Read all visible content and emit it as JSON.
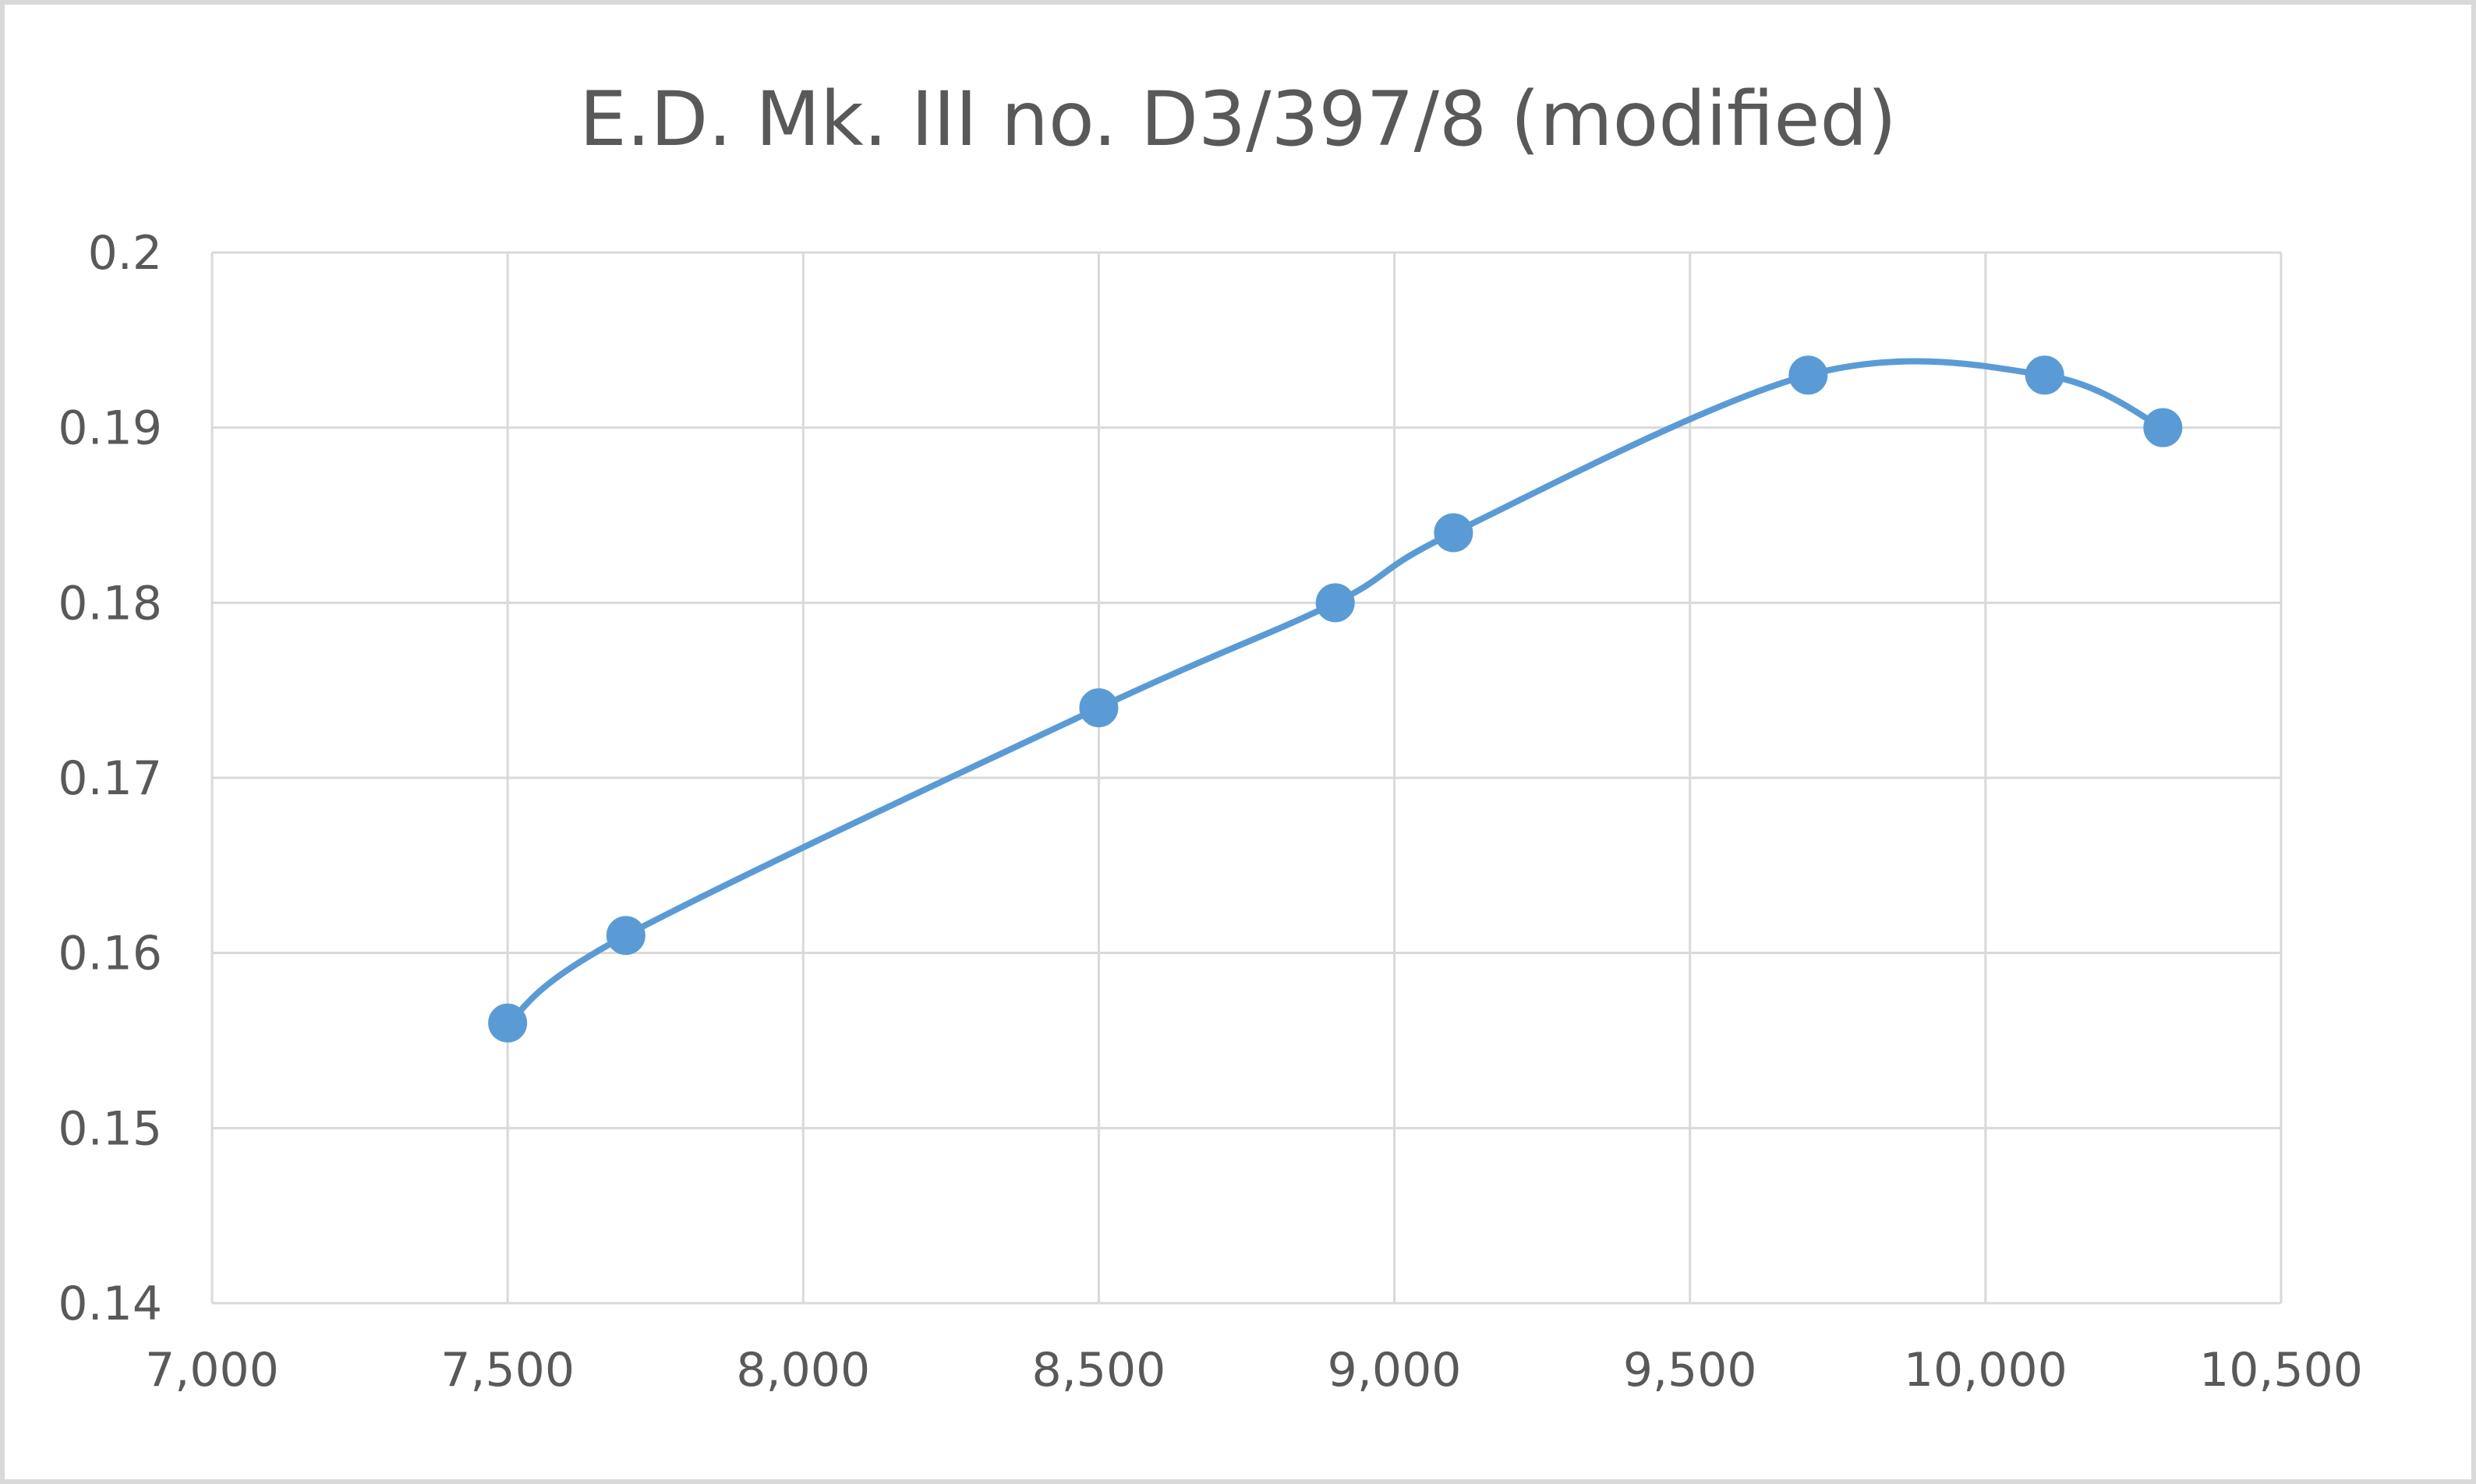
{
  "chart_data": {
    "type": "scatter",
    "title": "E.D. Mk. III no. D3/397/8 (modified)",
    "xlabel": "",
    "ylabel": "",
    "xlim": [
      7000,
      10500
    ],
    "ylim": [
      0.14,
      0.2
    ],
    "x_ticks": [
      7000,
      7500,
      8000,
      8500,
      9000,
      9500,
      10000,
      10500
    ],
    "x_tick_labels": [
      "7,000",
      "7,500",
      "8,000",
      "8,500",
      "9,000",
      "9,500",
      "10,000",
      "10,500"
    ],
    "y_ticks": [
      0.14,
      0.15,
      0.16,
      0.17,
      0.18,
      0.19,
      0.2
    ],
    "y_tick_labels": [
      "0.14",
      "0.15",
      "0.16",
      "0.17",
      "0.18",
      "0.19",
      "0.2"
    ],
    "grid": true,
    "legend": "none",
    "smooth_line": true,
    "series": [
      {
        "x": [
          7500,
          7700,
          8500,
          8900,
          9100,
          9700,
          10100,
          10300
        ],
        "y": [
          0.156,
          0.161,
          0.174,
          0.18,
          0.184,
          0.193,
          0.193,
          0.19
        ],
        "color": "#5B9BD5",
        "marker": "circle"
      }
    ]
  }
}
